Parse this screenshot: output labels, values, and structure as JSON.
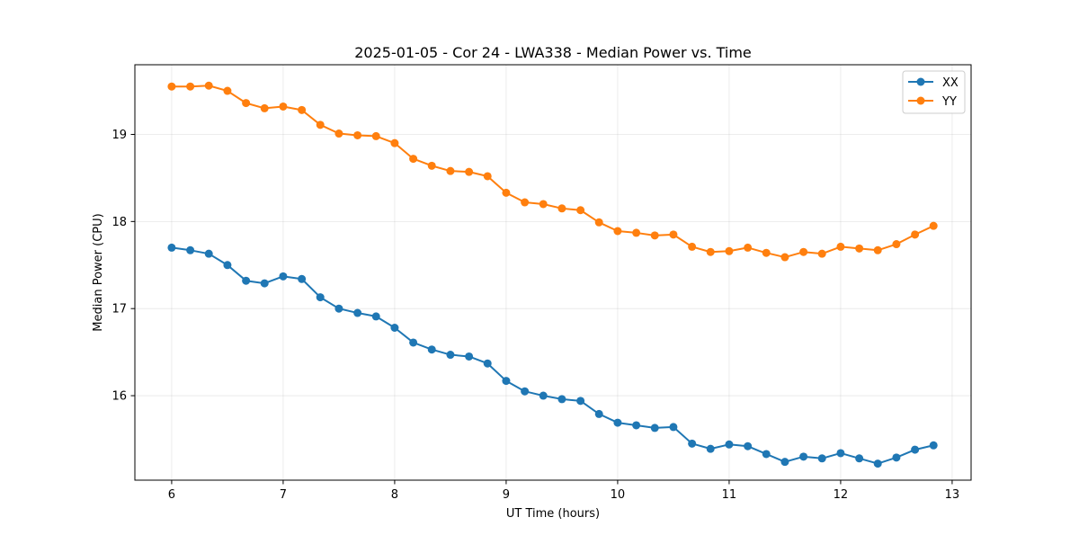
{
  "chart_data": {
    "type": "line",
    "title": "2025-01-05 - Cor 24 - LWA338 - Median Power vs. Time",
    "xlabel": "UT Time (hours)",
    "ylabel": "Median Power (CPU)",
    "xlim": [
      5.67,
      13.17
    ],
    "ylim": [
      15.03,
      19.8
    ],
    "xticks": [
      6,
      7,
      8,
      9,
      10,
      11,
      12,
      13
    ],
    "yticks": [
      16,
      17,
      18,
      19
    ],
    "grid": true,
    "legend_position": "top-right",
    "x": [
      6.0,
      6.167,
      6.333,
      6.5,
      6.667,
      6.833,
      7.0,
      7.167,
      7.333,
      7.5,
      7.667,
      7.833,
      8.0,
      8.167,
      8.333,
      8.5,
      8.667,
      8.833,
      9.0,
      9.167,
      9.333,
      9.5,
      9.667,
      9.833,
      10.0,
      10.167,
      10.333,
      10.5,
      10.667,
      10.833,
      11.0,
      11.167,
      11.333,
      11.5,
      11.667,
      11.833,
      12.0,
      12.167,
      12.333,
      12.5,
      12.667,
      12.833
    ],
    "series": [
      {
        "name": "XX",
        "color": "#1f77b4",
        "values": [
          17.7,
          17.67,
          17.63,
          17.5,
          17.32,
          17.29,
          17.37,
          17.34,
          17.13,
          17.0,
          16.95,
          16.91,
          16.78,
          16.61,
          16.53,
          16.47,
          16.45,
          16.37,
          16.17,
          16.05,
          16.0,
          15.96,
          15.94,
          15.79,
          15.69,
          15.66,
          15.63,
          15.64,
          15.45,
          15.39,
          15.44,
          15.42,
          15.33,
          15.24,
          15.3,
          15.28,
          15.34,
          15.28,
          15.22,
          15.29,
          15.38,
          15.43
        ]
      },
      {
        "name": "YY",
        "color": "#ff7f0e",
        "values": [
          19.55,
          19.55,
          19.56,
          19.5,
          19.36,
          19.3,
          19.32,
          19.28,
          19.11,
          19.01,
          18.99,
          18.98,
          18.9,
          18.72,
          18.64,
          18.58,
          18.57,
          18.52,
          18.33,
          18.22,
          18.2,
          18.15,
          18.13,
          17.99,
          17.89,
          17.87,
          17.84,
          17.85,
          17.71,
          17.65,
          17.66,
          17.7,
          17.64,
          17.59,
          17.65,
          17.63,
          17.71,
          17.69,
          17.67,
          17.74,
          17.85,
          17.95
        ]
      }
    ]
  }
}
